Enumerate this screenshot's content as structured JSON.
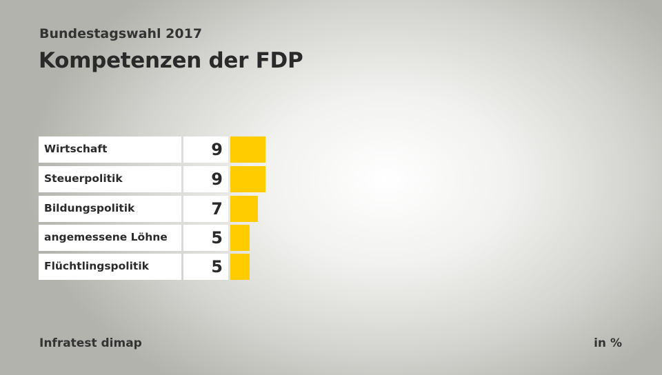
{
  "subtitle": "Bundestagswahl 2017",
  "title": "Kompetenzen der FDP",
  "source": "Infratest dimap",
  "unit": "in %",
  "colors": {
    "bar": "#ffcc00"
  },
  "chart_data": {
    "type": "bar",
    "orientation": "horizontal",
    "title": "Kompetenzen der FDP",
    "subtitle": "Bundestagswahl 2017",
    "categories": [
      "Wirtschaft",
      "Steuerpolitik",
      "Bildungspolitik",
      "angemessene Löhne",
      "Flüchtlingspolitik"
    ],
    "values": [
      9,
      9,
      7,
      5,
      5
    ],
    "xlabel": "",
    "ylabel": "in %",
    "xlim": [
      0,
      9
    ]
  }
}
